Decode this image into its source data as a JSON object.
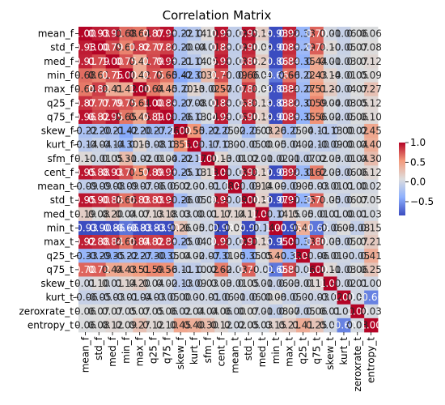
{
  "chart_data": {
    "type": "heatmap",
    "title": "Correlation Matrix",
    "xlabel": "",
    "ylabel": "",
    "labels": [
      "mean_f",
      "std_f",
      "med_f",
      "min_f",
      "max_f",
      "q25_f",
      "q75_f",
      "skew_f",
      "kurt_f",
      "sfm_f",
      "cent_f",
      "mean_t",
      "std_t",
      "med_t",
      "min_t",
      "max_t",
      "q25_t",
      "q75_t",
      "skew_t",
      "kurt_t",
      "zeroxrate_t",
      "entropy_t"
    ],
    "colormap": "coolwarm",
    "vmin": -0.85,
    "vmax": 1.0,
    "colorbar_ticks": [
      1.0,
      0.5,
      0.0,
      -0.5
    ],
    "colorbar_tick_labels": [
      "1.0",
      "0.5",
      "0.0",
      "−0.5"
    ],
    "annot_format": ".2f",
    "matrix": [
      [
        1.0,
        0.93,
        0.91,
        0.68,
        0.64,
        0.87,
        0.96,
        -0.22,
        -0.14,
        0.1,
        0.95,
        -0.09,
        0.95,
        0.19,
        -0.93,
        0.92,
        -0.33,
        0.7,
        0.01,
        -0.06,
        0.06,
        0.06
      ],
      [
        0.93,
        1.0,
        0.79,
        0.61,
        0.82,
        0.77,
        0.82,
        -0.2,
        -0.04,
        -0.01,
        0.88,
        -0.09,
        0.9,
        0.08,
        -0.9,
        0.88,
        -0.29,
        0.72,
        0.1,
        -0.05,
        0.07,
        0.08
      ],
      [
        0.91,
        0.79,
        1.0,
        0.75,
        0.41,
        0.79,
        0.95,
        -0.21,
        -0.14,
        0.05,
        0.93,
        -0.08,
        0.86,
        0.2,
        -0.86,
        0.84,
        -0.35,
        0.44,
        0.01,
        -0.03,
        0.07,
        0.12
      ],
      [
        0.68,
        0.61,
        0.75,
        1.0,
        0.42,
        0.75,
        0.65,
        -0.42,
        -0.3,
        0.31,
        0.77,
        -0.09,
        0.66,
        0.04,
        -0.66,
        0.66,
        -0.22,
        0.43,
        0.14,
        -0.01,
        0.05,
        0.09
      ],
      [
        0.64,
        0.82,
        0.41,
        0.42,
        1.0,
        0.64,
        0.45,
        -0.2,
        0.13,
        -0.02,
        0.57,
        -0.07,
        0.83,
        0.07,
        -0.83,
        0.84,
        -0.27,
        0.51,
        0.2,
        -0.04,
        0.07,
        0.27
      ],
      [
        0.87,
        0.77,
        0.79,
        0.75,
        0.64,
        1.0,
        0.89,
        -0.27,
        -0.08,
        -0.01,
        0.89,
        -0.06,
        0.83,
        0.13,
        -0.83,
        0.82,
        -0.3,
        0.59,
        0.04,
        -0.03,
        0.05,
        0.12
      ],
      [
        0.96,
        0.82,
        0.95,
        0.65,
        0.45,
        0.89,
        1.0,
        -0.26,
        -0.13,
        0.04,
        0.93,
        -0.06,
        0.9,
        0.18,
        -0.9,
        0.88,
        -0.35,
        0.56,
        0.02,
        -0.05,
        0.06,
        0.1
      ],
      [
        -0.22,
        -0.2,
        -0.21,
        -0.42,
        -0.2,
        -0.27,
        -0.26,
        1.0,
        0.55,
        -0.22,
        -0.25,
        0.02,
        -0.26,
        0.03,
        0.26,
        -0.25,
        0.04,
        -0.11,
        -0.13,
        0.0,
        0.02,
        0.45
      ],
      [
        -0.14,
        -0.04,
        -0.14,
        -0.3,
        0.13,
        -0.08,
        -0.13,
        0.55,
        1.0,
        -0.17,
        -0.13,
        0.0,
        -0.05,
        0.0,
        0.05,
        -0.04,
        0.02,
        -0.1,
        -0.09,
        0.0,
        0.04,
        0.4
      ],
      [
        0.1,
        -0.01,
        0.05,
        0.31,
        -0.02,
        -0.01,
        0.04,
        -0.22,
        -0.17,
        1.0,
        0.13,
        -0.01,
        0.02,
        0.01,
        -0.02,
        0.01,
        -0.07,
        0.02,
        0.03,
        -0.01,
        0.04,
        0.3
      ],
      [
        0.95,
        0.88,
        0.93,
        0.77,
        0.57,
        0.89,
        0.93,
        -0.25,
        -0.13,
        0.13,
        1.0,
        -0.08,
        0.93,
        0.17,
        -0.93,
        0.92,
        -0.31,
        0.62,
        0.03,
        -0.06,
        0.06,
        0.12
      ],
      [
        -0.09,
        -0.09,
        -0.08,
        -0.09,
        -0.07,
        -0.06,
        -0.06,
        0.02,
        0.0,
        -0.01,
        -0.08,
        1.0,
        -0.09,
        0.14,
        0.09,
        -0.09,
        0.05,
        -0.03,
        -0.01,
        0.01,
        0.0,
        0.02
      ],
      [
        0.95,
        0.9,
        0.86,
        0.66,
        0.83,
        0.83,
        0.9,
        -0.26,
        -0.05,
        0.02,
        0.93,
        -0.09,
        1.0,
        0.17,
        -0.97,
        0.97,
        -0.35,
        0.71,
        0.05,
        -0.06,
        0.07,
        0.05
      ],
      [
        0.19,
        0.08,
        0.2,
        0.04,
        0.07,
        0.13,
        0.18,
        0.03,
        0.0,
        0.01,
        0.17,
        0.14,
        0.17,
        1.0,
        -0.14,
        0.15,
        0.05,
        -0.01,
        0.01,
        0.0,
        0.01,
        0.03
      ],
      [
        -0.93,
        -0.9,
        -0.86,
        -0.66,
        -0.83,
        -0.83,
        -0.9,
        0.26,
        0.05,
        -0.02,
        -0.93,
        0.09,
        -0.97,
        -0.14,
        1.0,
        -0.95,
        0.4,
        -0.65,
        -0.06,
        0.08,
        -0.08,
        0.15
      ],
      [
        0.92,
        0.88,
        0.84,
        0.66,
        0.84,
        0.82,
        0.88,
        -0.25,
        -0.04,
        0.01,
        0.92,
        -0.09,
        0.97,
        0.15,
        -0.95,
        1.0,
        -0.33,
        0.8,
        0.03,
        -0.05,
        0.07,
        0.21
      ],
      [
        -0.33,
        -0.29,
        -0.35,
        -0.22,
        -0.27,
        -0.3,
        -0.35,
        0.04,
        0.02,
        -0.07,
        -0.31,
        0.05,
        -0.35,
        0.05,
        0.4,
        -0.33,
        1.0,
        -0.06,
        -0.01,
        0.0,
        -0.05,
        0.41
      ],
      [
        0.7,
        0.72,
        0.44,
        0.43,
        0.51,
        0.59,
        0.56,
        -0.11,
        -0.1,
        0.02,
        0.62,
        -0.03,
        0.71,
        -0.01,
        -0.65,
        0.8,
        -0.06,
        1.0,
        0.11,
        -0.03,
        0.06,
        0.25
      ],
      [
        0.01,
        0.1,
        0.01,
        0.14,
        0.2,
        0.04,
        0.02,
        -0.13,
        -0.09,
        0.03,
        0.03,
        -0.01,
        0.05,
        0.01,
        -0.06,
        0.03,
        -0.01,
        0.11,
        1.0,
        -0.02,
        0.01,
        0.0
      ],
      [
        -0.06,
        -0.05,
        -0.03,
        -0.01,
        -0.04,
        -0.03,
        -0.05,
        0.0,
        0.0,
        -0.01,
        -0.06,
        0.01,
        -0.06,
        0.0,
        0.08,
        -0.05,
        0.0,
        -0.03,
        -0.02,
        1.0,
        0.0,
        -0.6
      ],
      [
        0.06,
        0.07,
        0.07,
        0.05,
        0.07,
        0.05,
        0.06,
        0.02,
        0.04,
        0.04,
        0.06,
        0.0,
        0.07,
        0.01,
        -0.08,
        0.07,
        -0.05,
        0.06,
        0.01,
        0.0,
        1.0,
        0.03
      ],
      [
        0.06,
        0.08,
        0.12,
        0.09,
        0.27,
        0.12,
        0.1,
        0.45,
        0.4,
        0.3,
        0.12,
        0.02,
        0.05,
        0.03,
        0.15,
        0.21,
        0.41,
        0.25,
        0.0,
        -0.6,
        0.03,
        1.0
      ]
    ]
  }
}
